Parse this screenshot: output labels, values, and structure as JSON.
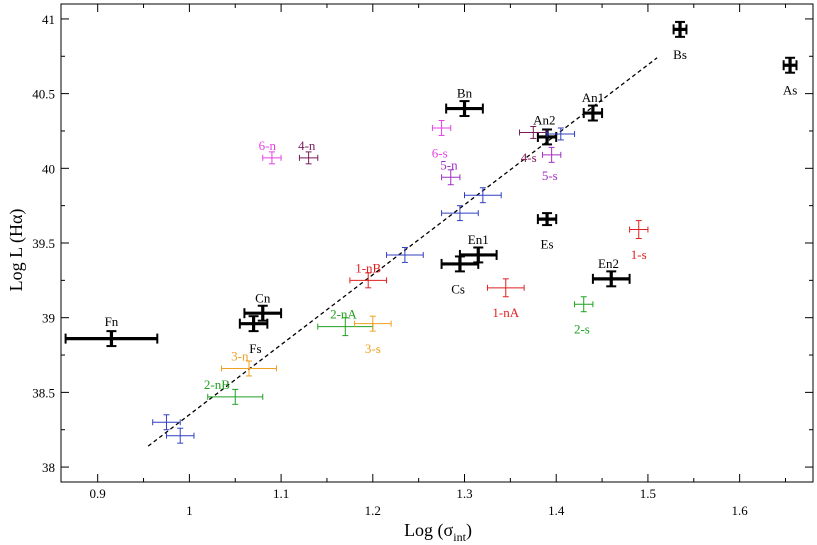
{
  "chart_data": {
    "type": "scatter",
    "xlabel": "Log (σ",
    "xlabel_sub": "int",
    "xlabel_close": ")",
    "ylabel": "Log L (Hα)",
    "xlim": [
      0.86,
      1.68
    ],
    "ylim": [
      37.9,
      41.1
    ],
    "xticks": [
      0.9,
      1.0,
      1.1,
      1.2,
      1.3,
      1.4,
      1.5,
      1.6
    ],
    "xtick_labels": [
      "0.9",
      "1",
      "1.1",
      "1.2",
      "1.3",
      "1.4",
      "1.5",
      "1.6"
    ],
    "yticks": [
      38,
      38.5,
      39,
      39.5,
      40,
      40.5,
      41
    ],
    "ytick_labels": [
      "38",
      "38.5",
      "39",
      "39.5",
      "40",
      "40.5",
      "41"
    ],
    "fit_line": {
      "x": [
        0.955,
        1.51
      ],
      "y": [
        38.14,
        40.74
      ]
    },
    "points": [
      {
        "label": "Fn",
        "x": 0.915,
        "y": 38.86,
        "xerr": 0.05,
        "yerr": 0.05,
        "color": "#000000",
        "heavy": true,
        "lx": 0.915,
        "ly": 38.97
      },
      {
        "label": "Cn",
        "x": 1.08,
        "y": 39.03,
        "xerr": 0.02,
        "yerr": 0.05,
        "color": "#000000",
        "heavy": true,
        "lx": 1.08,
        "ly": 39.13
      },
      {
        "label": "Fs",
        "x": 1.07,
        "y": 38.96,
        "xerr": 0.015,
        "yerr": 0.05,
        "color": "#000000",
        "heavy": true,
        "lx": 1.072,
        "ly": 38.79
      },
      {
        "label": "Cs",
        "x": 1.295,
        "y": 39.36,
        "xerr": 0.02,
        "yerr": 0.05,
        "color": "#000000",
        "heavy": true,
        "lx": 1.293,
        "ly": 39.19
      },
      {
        "label": "En1",
        "x": 1.315,
        "y": 39.42,
        "xerr": 0.02,
        "yerr": 0.05,
        "color": "#000000",
        "heavy": true,
        "lx": 1.315,
        "ly": 39.52
      },
      {
        "label": "Bn",
        "x": 1.3,
        "y": 40.4,
        "xerr": 0.02,
        "yerr": 0.05,
        "color": "#000000",
        "heavy": true,
        "lx": 1.3,
        "ly": 40.5
      },
      {
        "label": "Es",
        "x": 1.39,
        "y": 39.66,
        "xerr": 0.01,
        "yerr": 0.04,
        "color": "#000000",
        "heavy": true,
        "lx": 1.39,
        "ly": 39.49
      },
      {
        "label": "An2",
        "x": 1.39,
        "y": 40.21,
        "xerr": 0.01,
        "yerr": 0.05,
        "color": "#000000",
        "heavy": true,
        "lx": 1.387,
        "ly": 40.32
      },
      {
        "label": "An1",
        "x": 1.44,
        "y": 40.37,
        "xerr": 0.01,
        "yerr": 0.05,
        "color": "#000000",
        "heavy": true,
        "lx": 1.44,
        "ly": 40.47
      },
      {
        "label": "En2",
        "x": 1.46,
        "y": 39.26,
        "xerr": 0.02,
        "yerr": 0.05,
        "color": "#000000",
        "heavy": true,
        "lx": 1.457,
        "ly": 39.36
      },
      {
        "label": "Bs",
        "x": 1.535,
        "y": 40.93,
        "xerr": 0.007,
        "yerr": 0.05,
        "color": "#000000",
        "heavy": true,
        "lx": 1.535,
        "ly": 40.76
      },
      {
        "label": "As",
        "x": 1.655,
        "y": 40.69,
        "xerr": 0.007,
        "yerr": 0.05,
        "color": "#000000",
        "heavy": true,
        "lx": 1.655,
        "ly": 40.52
      },
      {
        "label": "6-n",
        "x": 1.09,
        "y": 40.07,
        "xerr": 0.01,
        "yerr": 0.04,
        "color": "#e640e6",
        "heavy": false,
        "lx": 1.085,
        "ly": 40.15
      },
      {
        "label": "4-n",
        "x": 1.13,
        "y": 40.07,
        "xerr": 0.01,
        "yerr": 0.04,
        "color": "#7a1a5a",
        "heavy": false,
        "lx": 1.128,
        "ly": 40.15
      },
      {
        "label": "6-s",
        "x": 1.275,
        "y": 40.27,
        "xerr": 0.01,
        "yerr": 0.05,
        "color": "#e640e6",
        "heavy": false,
        "lx": 1.273,
        "ly": 40.1
      },
      {
        "label": "5-n",
        "x": 1.285,
        "y": 39.94,
        "xerr": 0.01,
        "yerr": 0.05,
        "color": "#a030c0",
        "heavy": false,
        "lx": 1.283,
        "ly": 40.02
      },
      {
        "label": "4-s",
        "x": 1.375,
        "y": 40.24,
        "xerr": 0.015,
        "yerr": 0.04,
        "color": "#7a1a5a",
        "heavy": false,
        "lx": 1.37,
        "ly": 40.07
      },
      {
        "label": "5-s",
        "x": 1.395,
        "y": 40.09,
        "xerr": 0.01,
        "yerr": 0.05,
        "color": "#a030c0",
        "heavy": false,
        "lx": 1.393,
        "ly": 39.95
      },
      {
        "label": "1-nB",
        "x": 1.195,
        "y": 39.25,
        "xerr": 0.02,
        "yerr": 0.05,
        "color": "#e02020",
        "heavy": false,
        "lx": 1.195,
        "ly": 39.33
      },
      {
        "label": "1-nA",
        "x": 1.345,
        "y": 39.2,
        "xerr": 0.02,
        "yerr": 0.06,
        "color": "#e02020",
        "heavy": false,
        "lx": 1.345,
        "ly": 39.03
      },
      {
        "label": "1-s",
        "x": 1.49,
        "y": 39.59,
        "xerr": 0.01,
        "yerr": 0.06,
        "color": "#e02020",
        "heavy": false,
        "lx": 1.49,
        "ly": 39.42
      },
      {
        "label": "2-nA",
        "x": 1.17,
        "y": 38.94,
        "xerr": 0.03,
        "yerr": 0.06,
        "color": "#20a020",
        "heavy": false,
        "lx": 1.168,
        "ly": 39.02
      },
      {
        "label": "2-s",
        "x": 1.43,
        "y": 39.09,
        "xerr": 0.01,
        "yerr": 0.05,
        "color": "#20a020",
        "heavy": false,
        "lx": 1.428,
        "ly": 38.92
      },
      {
        "label": "2-nB",
        "x": 1.05,
        "y": 38.47,
        "xerr": 0.03,
        "yerr": 0.05,
        "color": "#20a020",
        "heavy": false,
        "lx": 1.03,
        "ly": 38.55
      },
      {
        "label": "3-n",
        "x": 1.065,
        "y": 38.66,
        "xerr": 0.03,
        "yerr": 0.05,
        "color": "#f0a020",
        "heavy": false,
        "lx": 1.055,
        "ly": 38.74
      },
      {
        "label": "3-s",
        "x": 1.2,
        "y": 38.96,
        "xerr": 0.02,
        "yerr": 0.05,
        "color": "#f0a020",
        "heavy": false,
        "lx": 1.2,
        "ly": 38.79
      },
      {
        "label": "",
        "x": 0.975,
        "y": 38.3,
        "xerr": 0.015,
        "yerr": 0.05,
        "color": "#3040c0",
        "heavy": false
      },
      {
        "label": "",
        "x": 0.99,
        "y": 38.21,
        "xerr": 0.015,
        "yerr": 0.05,
        "color": "#3040c0",
        "heavy": false
      },
      {
        "label": "",
        "x": 1.235,
        "y": 39.42,
        "xerr": 0.02,
        "yerr": 0.05,
        "color": "#3040c0",
        "heavy": false
      },
      {
        "label": "",
        "x": 1.295,
        "y": 39.7,
        "xerr": 0.02,
        "yerr": 0.05,
        "color": "#3040c0",
        "heavy": false
      },
      {
        "label": "",
        "x": 1.32,
        "y": 39.82,
        "xerr": 0.02,
        "yerr": 0.05,
        "color": "#3040c0",
        "heavy": false
      },
      {
        "label": "",
        "x": 1.405,
        "y": 40.23,
        "xerr": 0.015,
        "yerr": 0.04,
        "color": "#3040c0",
        "heavy": false
      }
    ]
  }
}
